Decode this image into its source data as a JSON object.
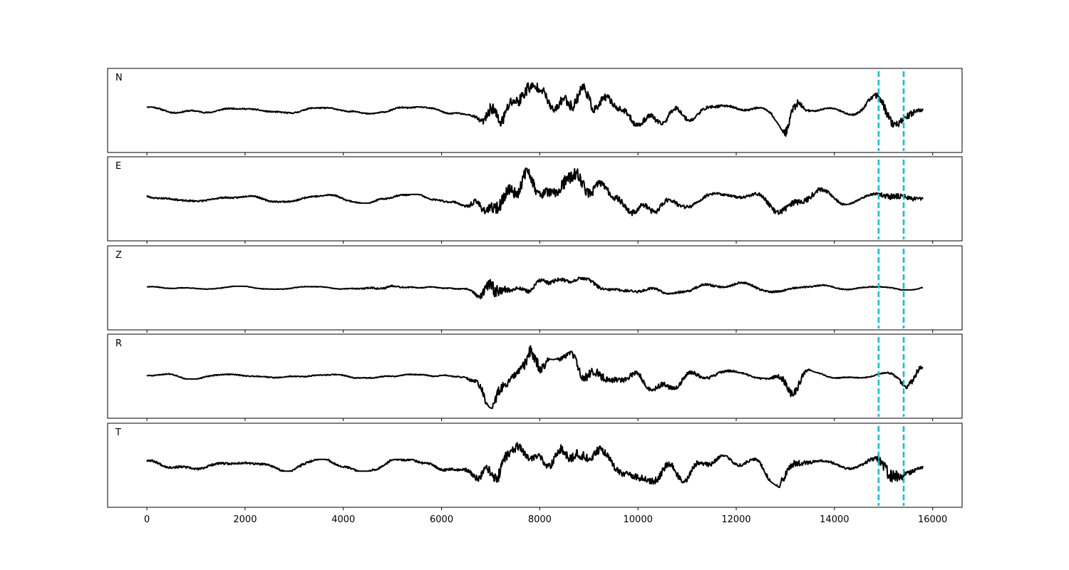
{
  "chart_data": {
    "type": "line",
    "title": "",
    "xlabel": "",
    "ylabel": "",
    "xlim": [
      -800,
      16600
    ],
    "xticks": [
      0,
      2000,
      4000,
      6000,
      8000,
      10000,
      12000,
      14000,
      16000
    ],
    "sample_count": 15800,
    "grid": false,
    "legend": "none",
    "trace_color": "#000000",
    "marker_color": "#17becf",
    "markers_x": [
      14900,
      15410
    ],
    "panels": [
      {
        "label": "N",
        "noise": 0.09,
        "seed": 11,
        "bursts": [
          {
            "t": 7100,
            "w": 300,
            "a": 0.82
          },
          {
            "t": 7700,
            "w": 350,
            "a": 0.8
          },
          {
            "t": 8700,
            "w": 600,
            "a": 0.55
          },
          {
            "t": 10000,
            "w": 1500,
            "a": 0.3
          },
          {
            "t": 13100,
            "w": 250,
            "a": 0.65
          },
          {
            "t": 15200,
            "w": 500,
            "a": 0.58
          }
        ]
      },
      {
        "label": "E",
        "noise": 0.11,
        "seed": 23,
        "bursts": [
          {
            "t": 7000,
            "w": 400,
            "a": 0.5
          },
          {
            "t": 7600,
            "w": 500,
            "a": 0.6
          },
          {
            "t": 8600,
            "w": 450,
            "a": 0.68
          },
          {
            "t": 9700,
            "w": 1600,
            "a": 0.33
          },
          {
            "t": 13200,
            "w": 700,
            "a": 0.35
          },
          {
            "t": 15300,
            "w": 400,
            "a": 0.36
          }
        ]
      },
      {
        "label": "Z",
        "noise": 0.04,
        "seed": 37,
        "bursts": [
          {
            "t": 4800,
            "w": 500,
            "a": 0.1
          },
          {
            "t": 7050,
            "w": 260,
            "a": 0.88
          },
          {
            "t": 8200,
            "w": 1200,
            "a": 0.2
          },
          {
            "t": 11000,
            "w": 3000,
            "a": 0.12
          }
        ]
      },
      {
        "label": "R",
        "noise": 0.07,
        "seed": 51,
        "bursts": [
          {
            "t": 7050,
            "w": 350,
            "a": 0.75
          },
          {
            "t": 7800,
            "w": 300,
            "a": 0.8
          },
          {
            "t": 8800,
            "w": 600,
            "a": 0.5
          },
          {
            "t": 10200,
            "w": 1500,
            "a": 0.3
          },
          {
            "t": 13100,
            "w": 300,
            "a": 0.55
          },
          {
            "t": 15600,
            "w": 350,
            "a": 0.4
          }
        ]
      },
      {
        "label": "T",
        "noise": 0.15,
        "seed": 67,
        "bursts": [
          {
            "t": 7200,
            "w": 500,
            "a": 0.72
          },
          {
            "t": 8700,
            "w": 700,
            "a": 0.5
          },
          {
            "t": 10400,
            "w": 1200,
            "a": 0.35
          },
          {
            "t": 13000,
            "w": 400,
            "a": 0.45
          },
          {
            "t": 15150,
            "w": 350,
            "a": 0.78
          }
        ]
      }
    ]
  }
}
